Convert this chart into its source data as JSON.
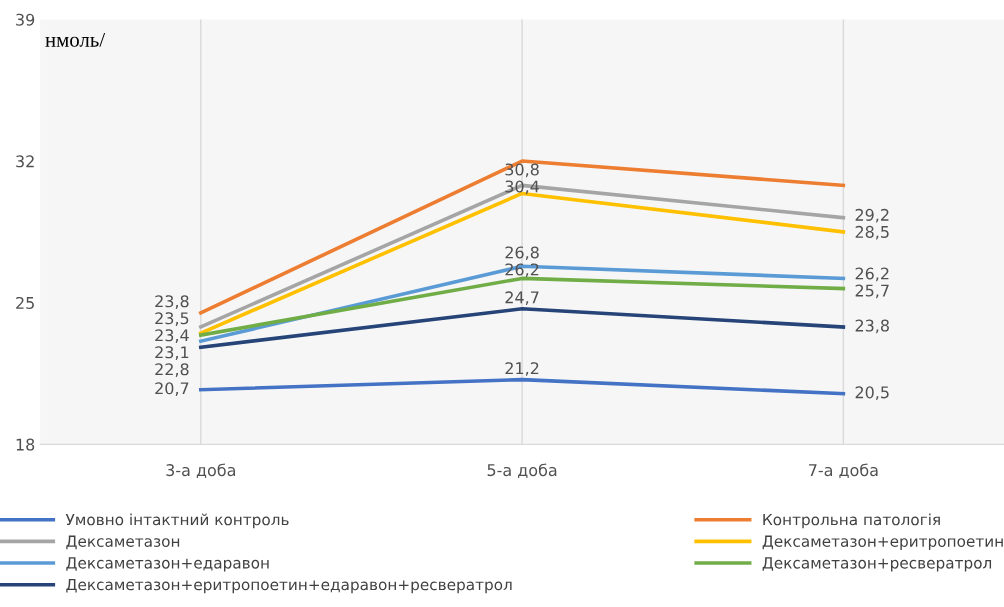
{
  "chart_data": {
    "type": "line",
    "ylabel": "нмоль/",
    "categories": [
      "3-а доба",
      "5-а доба",
      "7-а доба"
    ],
    "ylim": [
      18,
      39
    ],
    "yticks": [
      18,
      25,
      32,
      39
    ],
    "grid": "x",
    "legend": "bottom",
    "marker": "none",
    "line_style": "solid",
    "series": [
      {
        "name": "Умовно інтактний контроль",
        "color": "#4472c4",
        "values": [
          20.7,
          21.2,
          20.5
        ],
        "value_labels": [
          "20,7",
          "21,2",
          "20,5"
        ]
      },
      {
        "name": "Контрольна патологія",
        "color": "#ed7d31",
        "values": [
          24.5,
          32.0,
          30.8
        ],
        "value_labels": [
          null,
          null,
          null
        ]
      },
      {
        "name": "Дексаметазон",
        "color": "#a5a5a5",
        "values": [
          23.8,
          30.8,
          29.2
        ],
        "value_labels": [
          "23,8",
          "30,8",
          "29,2"
        ]
      },
      {
        "name": "Дексаметазон+еритропоетин",
        "color": "#ffc000",
        "values": [
          23.5,
          30.4,
          28.5
        ],
        "value_labels": [
          "23,5",
          "30,4",
          "28,5"
        ]
      },
      {
        "name": "Дексаметазон+едаравон",
        "color": "#5b9bd5",
        "values": [
          23.1,
          26.8,
          26.2
        ],
        "value_labels": [
          "23,1",
          "26,8",
          "26,2"
        ]
      },
      {
        "name": "Дексаметазон+ресвератрол",
        "color": "#70ad47",
        "values": [
          23.4,
          26.2,
          25.7
        ],
        "value_labels": [
          "23,4",
          "26,2",
          "25,7"
        ]
      },
      {
        "name": "Дексаметазон+еритропоетин+едаравон+ресвератрол",
        "color": "#264478",
        "values": [
          22.8,
          24.7,
          23.8
        ],
        "value_labels": [
          "22,8",
          "24,7",
          "23,8"
        ]
      }
    ]
  }
}
